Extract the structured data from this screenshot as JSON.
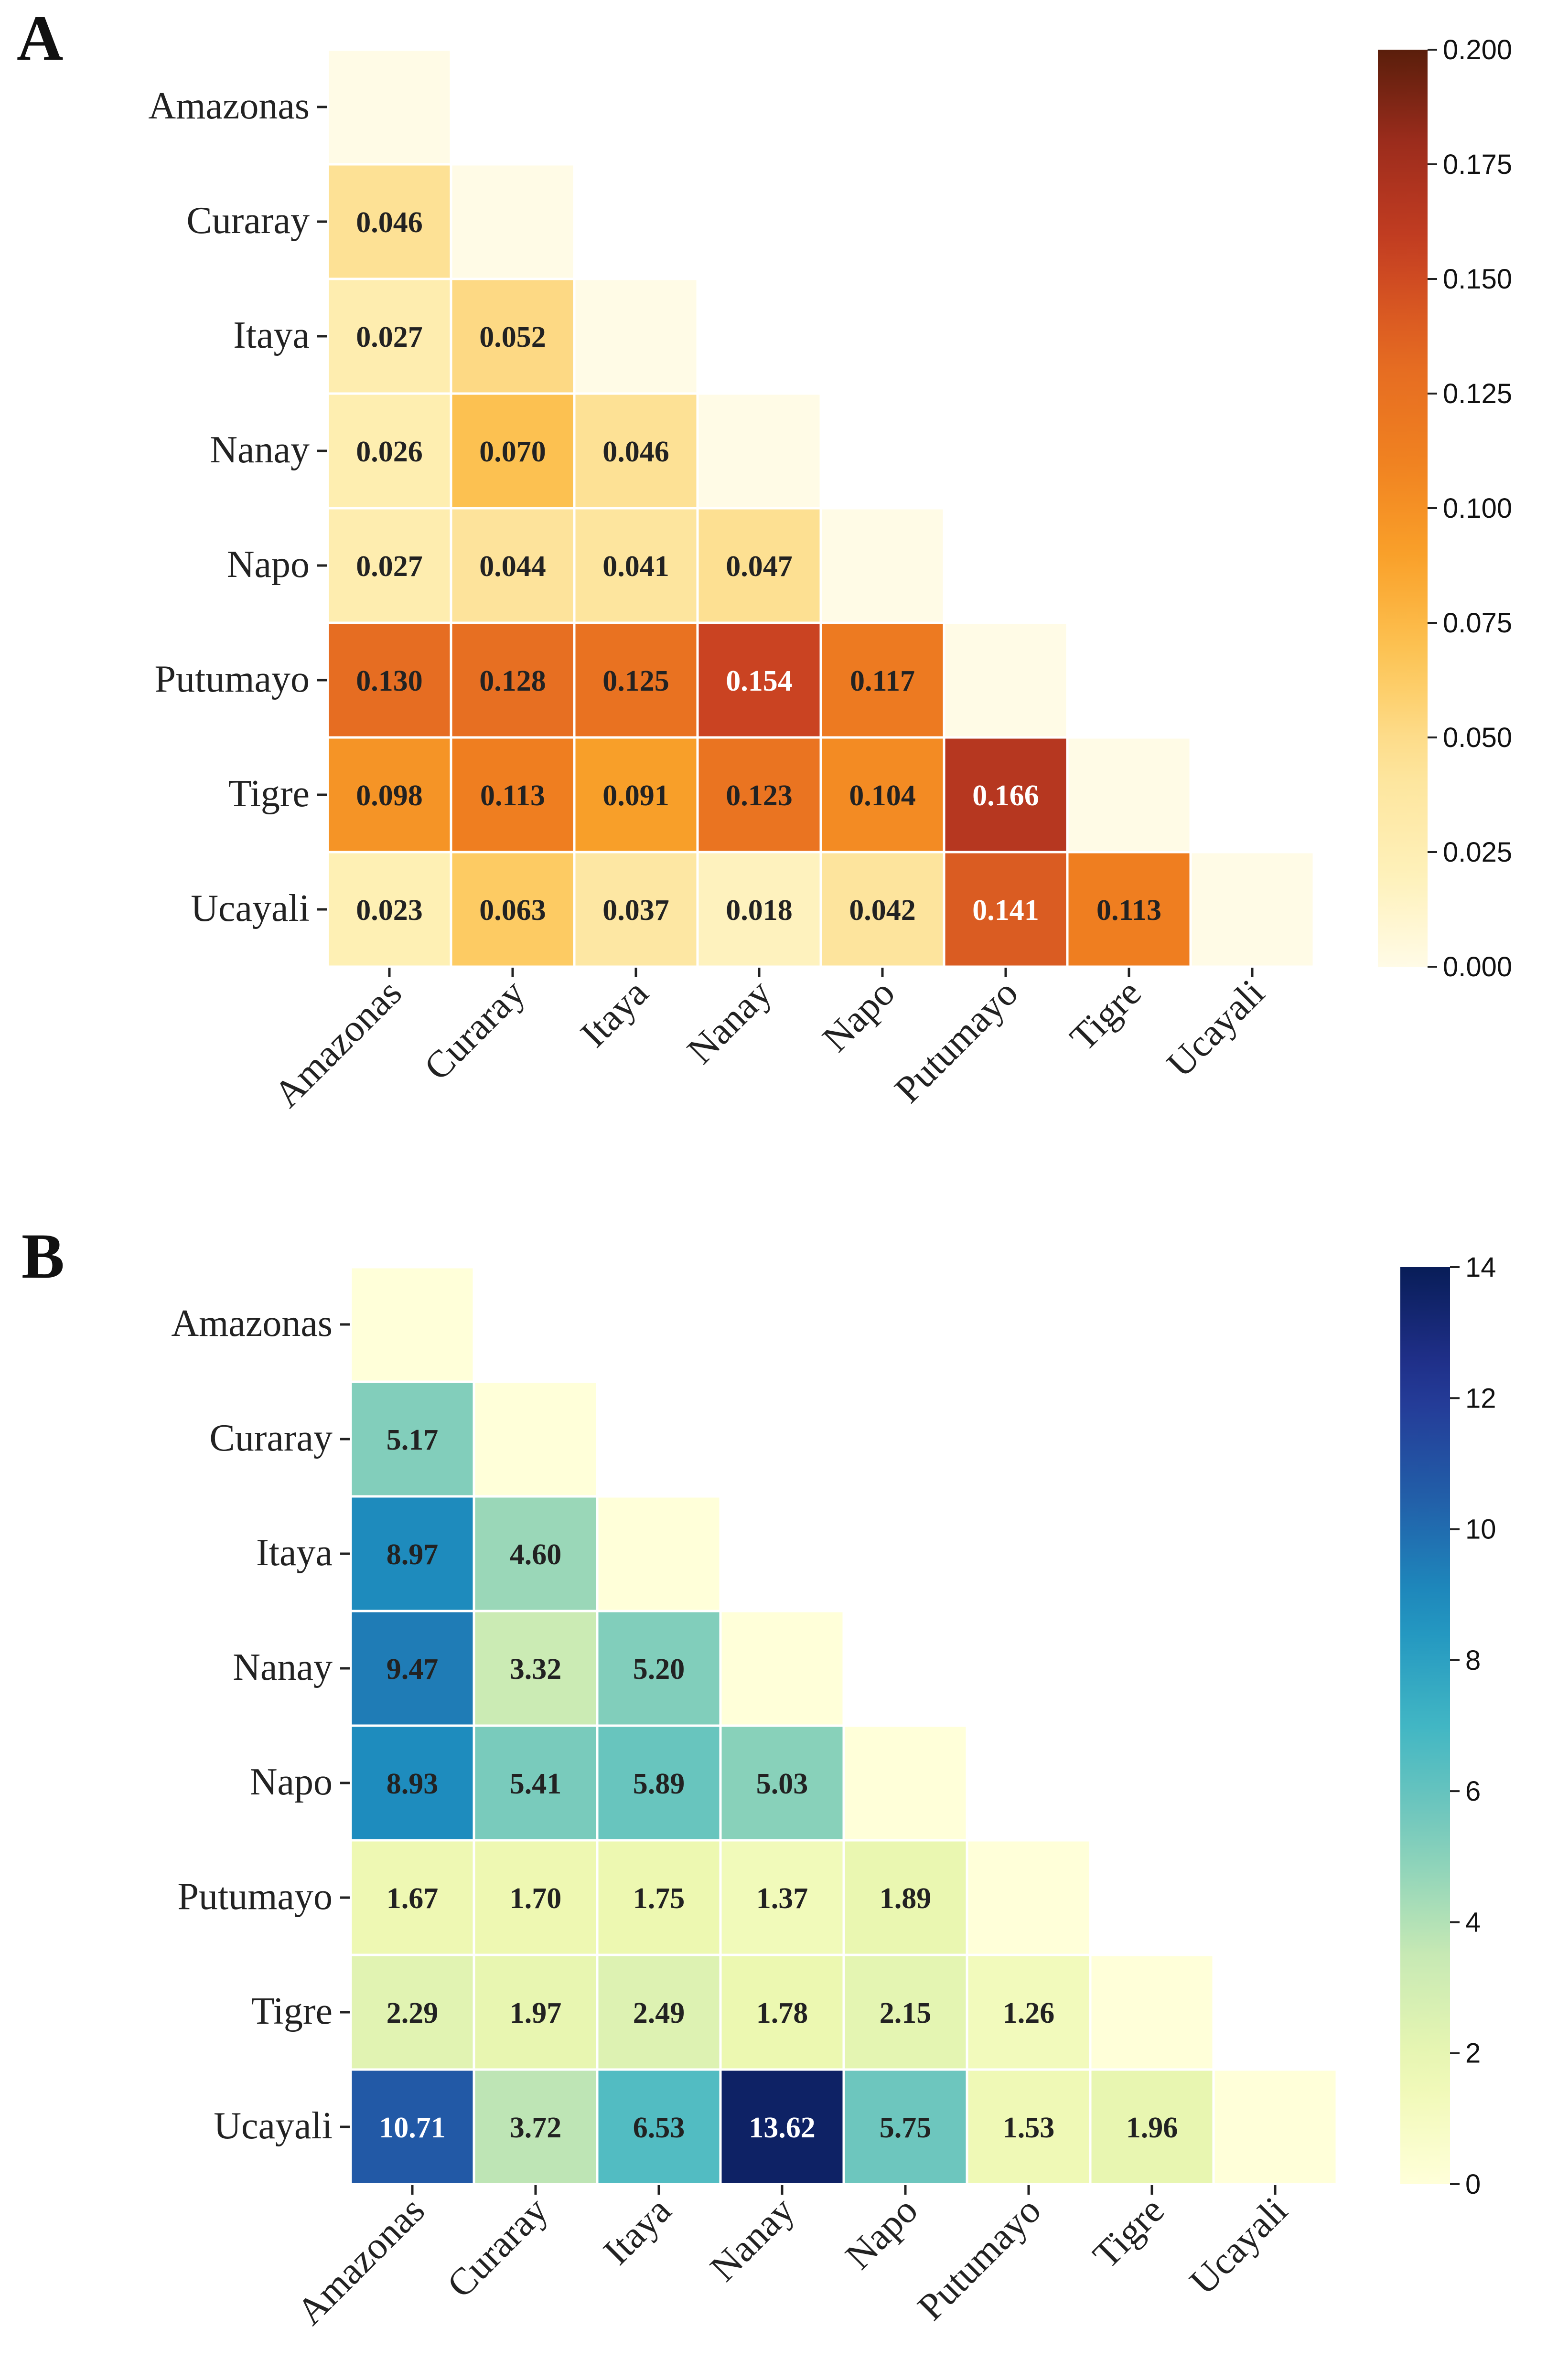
{
  "chart_data": [
    {
      "type": "heatmap",
      "panel_label": "A",
      "categories": [
        "Amazonas",
        "Curaray",
        "Itaya",
        "Nanay",
        "Napo",
        "Putumayo",
        "Tigre",
        "Ucayali"
      ],
      "matrix": [
        [
          null,
          null,
          null,
          null,
          null,
          null,
          null,
          null
        ],
        [
          0.046,
          null,
          null,
          null,
          null,
          null,
          null,
          null
        ],
        [
          0.027,
          0.052,
          null,
          null,
          null,
          null,
          null,
          null
        ],
        [
          0.026,
          0.07,
          0.046,
          null,
          null,
          null,
          null,
          null
        ],
        [
          0.027,
          0.044,
          0.041,
          0.047,
          null,
          null,
          null,
          null
        ],
        [
          0.13,
          0.128,
          0.125,
          0.154,
          0.117,
          null,
          null,
          null
        ],
        [
          0.098,
          0.113,
          0.091,
          0.123,
          0.104,
          0.166,
          null,
          null
        ],
        [
          0.023,
          0.063,
          0.037,
          0.018,
          0.042,
          0.141,
          0.113,
          null
        ]
      ],
      "value_format": "0.000",
      "triangle": "lower",
      "colormap": "YlOrBr",
      "colorbar": {
        "range": [
          0,
          0.2
        ],
        "ticks": [
          "0.000",
          "0.025",
          "0.050",
          "0.075",
          "0.100",
          "0.125",
          "0.150",
          "0.175",
          "0.200"
        ]
      }
    },
    {
      "type": "heatmap",
      "panel_label": "B",
      "categories": [
        "Amazonas",
        "Curaray",
        "Itaya",
        "Nanay",
        "Napo",
        "Putumayo",
        "Tigre",
        "Ucayali"
      ],
      "matrix": [
        [
          null,
          null,
          null,
          null,
          null,
          null,
          null,
          null
        ],
        [
          5.17,
          null,
          null,
          null,
          null,
          null,
          null,
          null
        ],
        [
          8.97,
          4.6,
          null,
          null,
          null,
          null,
          null,
          null
        ],
        [
          9.47,
          3.32,
          5.2,
          null,
          null,
          null,
          null,
          null
        ],
        [
          8.93,
          5.41,
          5.89,
          5.03,
          null,
          null,
          null,
          null
        ],
        [
          1.67,
          1.7,
          1.75,
          1.37,
          1.89,
          null,
          null,
          null
        ],
        [
          2.29,
          1.97,
          2.49,
          1.78,
          2.15,
          1.26,
          null,
          null
        ],
        [
          10.71,
          3.72,
          6.53,
          13.62,
          5.75,
          1.53,
          1.96,
          null
        ]
      ],
      "value_format": "0.00",
      "triangle": "lower",
      "colormap": "YlGnBu",
      "colorbar": {
        "range": [
          0,
          14
        ],
        "ticks": [
          "0",
          "2",
          "4",
          "6",
          "8",
          "10",
          "12",
          "14"
        ]
      }
    }
  ]
}
